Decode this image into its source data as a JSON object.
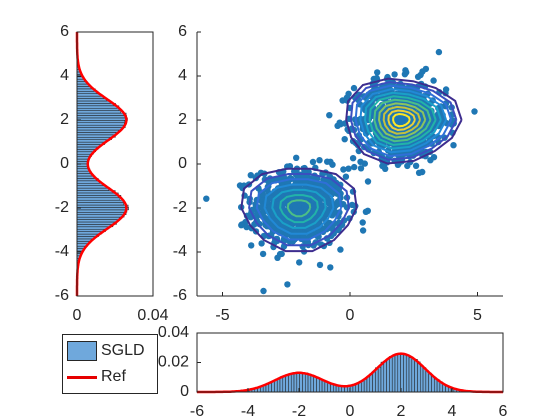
{
  "chart_data": [
    {
      "type": "scatter",
      "subtype": "scatter-with-contour",
      "xlim": [
        -6,
        6
      ],
      "ylim": [
        -6,
        6
      ],
      "xticks": [
        "-5",
        "0",
        "5"
      ],
      "yticks": [
        "-6",
        "-4",
        "-2",
        "0",
        "2",
        "4",
        "6"
      ],
      "components": [
        {
          "mean": [
            -2,
            -2
          ],
          "std": 0.9,
          "weight": 0.5
        },
        {
          "mean": [
            2,
            2
          ],
          "std": 0.9,
          "weight": 0.5
        }
      ],
      "contour_colormap": "parula",
      "colors": {
        "points": "#1f77b4",
        "contour_outer": "#3d2d8f",
        "contour_inner": "#fde725"
      }
    },
    {
      "type": "bar",
      "subtype": "marginal-histogram-horizontal",
      "ylim": [
        -6,
        6
      ],
      "xlim": [
        0,
        0.04
      ],
      "yticks": [
        "-6",
        "-4",
        "-2",
        "0",
        "2",
        "4",
        "6"
      ],
      "xticks": [
        "0",
        "0.04"
      ],
      "series": [
        {
          "name": "SGLD",
          "kind": "histogram"
        },
        {
          "name": "Ref",
          "kind": "line",
          "color": "#ff0000"
        }
      ],
      "peaks": [
        {
          "y": -2,
          "density": 0.026
        },
        {
          "y": 2,
          "density": 0.026
        }
      ]
    },
    {
      "type": "bar",
      "subtype": "marginal-histogram-vertical",
      "xlim": [
        -6,
        6
      ],
      "ylim": [
        0,
        0.04
      ],
      "xticks": [
        "-6",
        "-4",
        "-2",
        "0",
        "2",
        "4",
        "6"
      ],
      "yticks": [
        "0",
        "0.02",
        "0.04"
      ],
      "series": [
        {
          "name": "SGLD",
          "kind": "histogram"
        },
        {
          "name": "Ref",
          "kind": "line",
          "color": "#ff0000"
        }
      ],
      "peaks": [
        {
          "x": -2,
          "density": 0.013
        },
        {
          "x": 2,
          "density": 0.026
        }
      ]
    }
  ],
  "legend": {
    "items": [
      {
        "label": "SGLD",
        "swatch": "bar",
        "color": "#6fa8dc"
      },
      {
        "label": "Ref",
        "swatch": "line",
        "color": "#e60000"
      }
    ]
  }
}
